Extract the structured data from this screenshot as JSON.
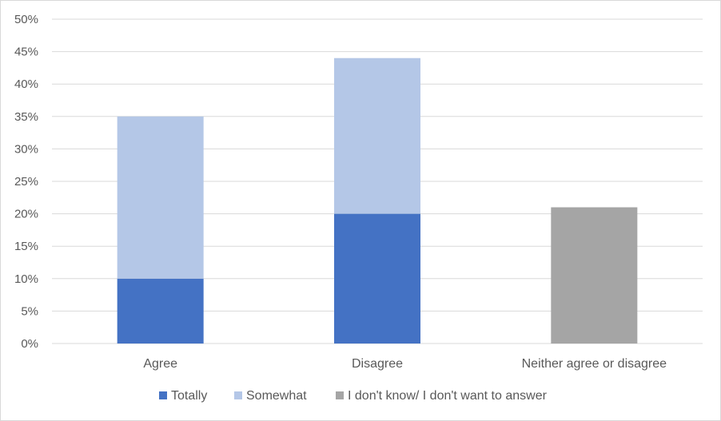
{
  "chart_data": {
    "type": "bar",
    "stacked": true,
    "categories": [
      "Agree",
      "Disagree",
      "Neither agree or disagree"
    ],
    "series": [
      {
        "name": "Totally",
        "color": "#4472c4",
        "values": [
          10,
          20,
          0
        ]
      },
      {
        "name": "Somewhat",
        "color": "#b4c7e7",
        "values": [
          25,
          24,
          0
        ]
      },
      {
        "name": "I don't know/ I don't want to answer",
        "color": "#a5a5a5",
        "values": [
          0,
          0,
          21
        ]
      }
    ],
    "ylim": [
      0,
      50
    ],
    "ytick_step": 5,
    "ytick_format": "percent",
    "y_ticks": [
      "0%",
      "5%",
      "10%",
      "15%",
      "20%",
      "25%",
      "30%",
      "35%",
      "40%",
      "45%",
      "50%"
    ],
    "grid": true,
    "gridline_color": "#d9d9d9",
    "legend_position": "bottom",
    "title": "",
    "xlabel": "",
    "ylabel": ""
  }
}
